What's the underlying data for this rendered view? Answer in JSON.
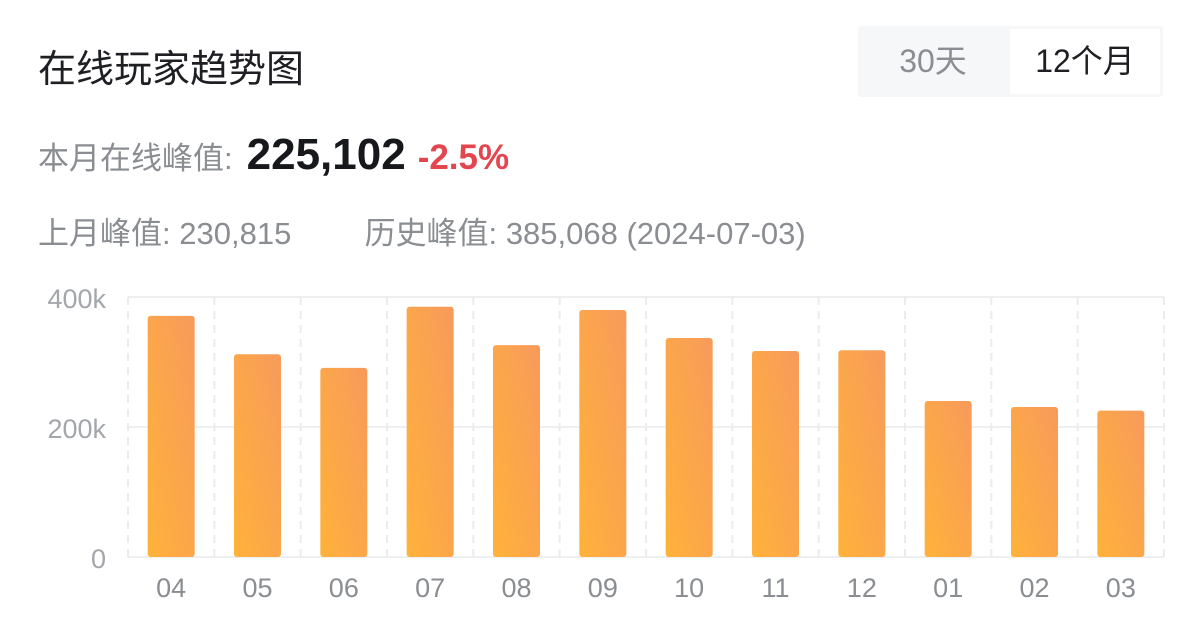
{
  "header": {
    "title": "在线玩家趋势图",
    "tabs": [
      {
        "label": "30天",
        "active": false
      },
      {
        "label": "12个月",
        "active": true
      }
    ]
  },
  "stats": {
    "current_label": "本月在线峰值:",
    "current_value": "225,102",
    "change": "-2.5%",
    "change_color": "#e4464f",
    "last_label": "上月峰值:",
    "last_value": "230,815",
    "record_label": "历史峰值:",
    "record_value": "385,068 (2024-07-03)"
  },
  "chart_data": {
    "type": "bar",
    "categories": [
      "04",
      "05",
      "06",
      "07",
      "08",
      "09",
      "10",
      "11",
      "12",
      "01",
      "02",
      "03"
    ],
    "values": [
      371000,
      312000,
      291000,
      385068,
      326000,
      380000,
      337000,
      317000,
      318000,
      240000,
      230815,
      225102
    ],
    "yticks": [
      {
        "value": 0,
        "label": "0"
      },
      {
        "value": 200000,
        "label": "200k"
      },
      {
        "value": 400000,
        "label": "400k"
      }
    ],
    "ylim": [
      0,
      400000
    ],
    "grid": true,
    "bar_color_top": "#f79a5c",
    "bar_color_bottom": "#ffb23a"
  }
}
